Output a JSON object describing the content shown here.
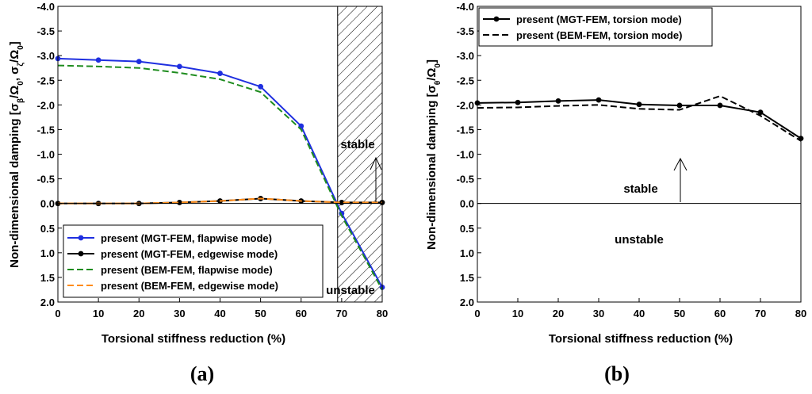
{
  "chart_data": [
    {
      "type": "line",
      "panel_label": "(a)",
      "xlabel": "Torsional stiffness reduction (%)",
      "ylabel": "Non-dimensional damping [σβ/Ω0, σζ/Ω0]",
      "ylabel_parts": {
        "prefix": "Non-dimensional damping [σ",
        "sub1": "β",
        "mid1": "/Ω",
        "sub2": "0",
        "mid2": ", σ",
        "sub3": "ζ",
        "mid3": "/Ω",
        "sub4": "0",
        "suffix": "]"
      },
      "xlim": [
        0,
        80
      ],
      "ylim": [
        2.0,
        -4.0
      ],
      "x_ticks": [
        "0",
        "10",
        "20",
        "30",
        "40",
        "50",
        "60",
        "70",
        "80"
      ],
      "y_ticks": [
        "-4.0",
        "-3.5",
        "-3.0",
        "-2.5",
        "-2.0",
        "-1.5",
        "-1.0",
        "-0.5",
        "0.0",
        "0.5",
        "1.0",
        "1.5",
        "2.0"
      ],
      "annotations": [
        "stable",
        "unstable"
      ],
      "shaded_region": [
        69,
        80
      ],
      "series": [
        {
          "name": "present (MGT-FEM, flapwise mode)",
          "color": "#1f2fe0",
          "style": "solid-marker",
          "x": [
            0,
            10,
            20,
            30,
            40,
            50,
            60,
            70,
            80
          ],
          "values": [
            -2.94,
            -2.91,
            -2.88,
            -2.78,
            -2.64,
            -2.37,
            -1.57,
            0.2,
            1.7
          ]
        },
        {
          "name": "present (MGT-FEM, edgewise mode)",
          "color": "#000000",
          "style": "solid-marker",
          "x": [
            0,
            10,
            20,
            30,
            40,
            50,
            60,
            70,
            80
          ],
          "values": [
            0.0,
            0.0,
            0.0,
            -0.02,
            -0.05,
            -0.1,
            -0.05,
            -0.02,
            -0.02
          ]
        },
        {
          "name": "present (BEM-FEM, flapwise mode)",
          "color": "#1e8c1e",
          "style": "dashed",
          "x": [
            0,
            10,
            20,
            30,
            40,
            50,
            60,
            70,
            80
          ],
          "values": [
            -2.8,
            -2.78,
            -2.75,
            -2.65,
            -2.52,
            -2.26,
            -1.5,
            0.25,
            1.75
          ]
        },
        {
          "name": "present (BEM-FEM, edgewise mode)",
          "color": "#ff8c1a",
          "style": "dashed",
          "x": [
            0,
            10,
            20,
            30,
            40,
            50,
            60,
            70,
            80
          ],
          "values": [
            0.0,
            0.0,
            0.0,
            -0.02,
            -0.05,
            -0.1,
            -0.05,
            -0.02,
            -0.02
          ]
        }
      ]
    },
    {
      "type": "line",
      "panel_label": "(b)",
      "xlabel": "Torsional stiffness reduction (%)",
      "ylabel": "Non-dimensional damping [σθ/Ω0]",
      "ylabel_parts": {
        "prefix": "Non-dimensional damping [σ",
        "sub1": "θ",
        "mid1": "/Ω",
        "sub2": "0",
        "suffix": "]"
      },
      "xlim": [
        0,
        80
      ],
      "ylim": [
        2.0,
        -4.0
      ],
      "x_ticks": [
        "0",
        "10",
        "20",
        "30",
        "40",
        "50",
        "60",
        "70",
        "80"
      ],
      "y_ticks": [
        "-4.0",
        "-3.5",
        "-3.0",
        "-2.5",
        "-2.0",
        "-1.5",
        "-1.0",
        "-0.5",
        "0.0",
        "0.5",
        "1.0",
        "1.5",
        "2.0"
      ],
      "annotations": [
        "stable",
        "unstable"
      ],
      "series": [
        {
          "name": "present (MGT-FEM, torsion mode)",
          "color": "#000000",
          "style": "solid-marker",
          "x": [
            0,
            10,
            20,
            30,
            40,
            50,
            60,
            70,
            80
          ],
          "values": [
            -2.04,
            -2.05,
            -2.08,
            -2.1,
            -2.01,
            -1.99,
            -1.99,
            -1.85,
            -1.32
          ]
        },
        {
          "name": "present (BEM-FEM, torsion mode)",
          "color": "#000000",
          "style": "dashed",
          "x": [
            0,
            10,
            20,
            30,
            40,
            50,
            60,
            70,
            80
          ],
          "values": [
            -1.94,
            -1.95,
            -1.98,
            -2.0,
            -1.92,
            -1.9,
            -2.18,
            -1.78,
            -1.27
          ]
        }
      ]
    }
  ]
}
